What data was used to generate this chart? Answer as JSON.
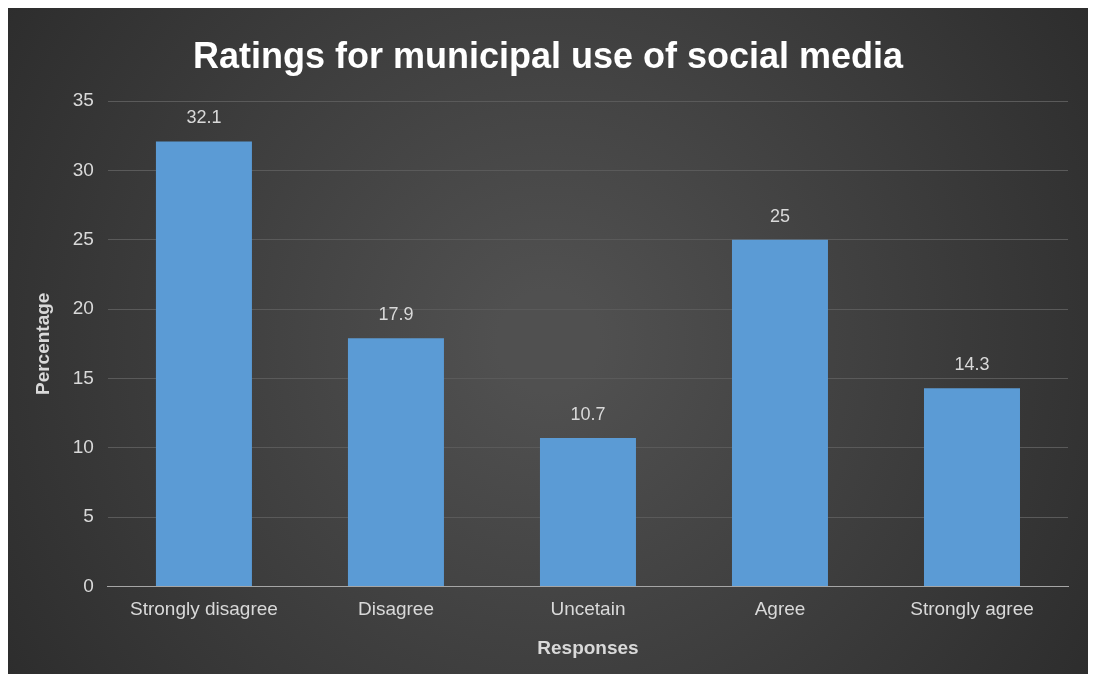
{
  "chart_data": {
    "type": "bar",
    "title": "Ratings for municipal use of social media",
    "xlabel": "Responses",
    "ylabel": "Percentage",
    "categories": [
      "Strongly disagree",
      "Disagree",
      "Uncetain",
      "Agree",
      "Strongly agree"
    ],
    "values": [
      32.1,
      17.9,
      10.7,
      25,
      14.3
    ],
    "color": "#5b9bd5",
    "ylim": [
      0,
      35
    ],
    "yticks": [
      0,
      5,
      10,
      15,
      20,
      25,
      30,
      35
    ],
    "grid": "y",
    "legend": false,
    "data_labels": true
  }
}
